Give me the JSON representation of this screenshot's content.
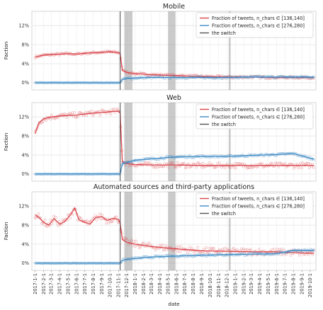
{
  "chart_data": {
    "type": "line",
    "xlabel": "date",
    "x_tick_labels": [
      "2017-1-1",
      "2017-2-1",
      "2017-3-1",
      "2017-4-1",
      "2017-5-1",
      "2017-6-1",
      "2017-7-1",
      "2017-8-1",
      "2017-9-1",
      "2017-10-1",
      "2017-11-1",
      "2017-12-1",
      "2018-1-1",
      "2018-2-1",
      "2018-3-1",
      "2018-4-1",
      "2018-5-1",
      "2018-6-1",
      "2018-7-1",
      "2018-8-1",
      "2018-9-1",
      "2018-10-1",
      "2018-11-1",
      "2018-12-1",
      "2019-1-1",
      "2019-2-1",
      "2019-3-1",
      "2019-4-1",
      "2019-5-1",
      "2019-6-1",
      "2019-7-1",
      "2019-8-1",
      "2019-9-1",
      "2019-10-1"
    ],
    "x_range": [
      "2016-12-20",
      "2019-10-22"
    ],
    "switch_date": "2017-11-07",
    "shaded_ranges": [
      [
        "2017-11-22",
        "2017-12-22"
      ],
      [
        "2018-05-01",
        "2018-05-28"
      ],
      [
        "2018-12-08",
        "2018-12-15"
      ]
    ],
    "legend": {
      "position": "top-right",
      "entries": [
        {
          "label": "Fraction of tweets, n_chars ∈ [136,140]",
          "color": "#d9454b"
        },
        {
          "label": "Fraction of tweets, n_chars ∈ [276,280]",
          "color": "#3f8cc6"
        },
        {
          "label": "the switch",
          "color": "#555555"
        }
      ]
    },
    "panels": [
      {
        "title": "Mobile",
        "ylabel": "Faction",
        "ylim": [
          -1.5,
          15
        ],
        "yticks": [
          "0%",
          "4%",
          "8%",
          "12%"
        ],
        "grid": true,
        "series": [
          {
            "name": "Fraction of tweets, n_chars ∈ [136,140]",
            "x": [
              "2017-01-01",
              "2017-02-01",
              "2017-03-01",
              "2017-04-01",
              "2017-05-01",
              "2017-06-01",
              "2017-07-01",
              "2017-08-01",
              "2017-09-01",
              "2017-10-01",
              "2017-11-01",
              "2017-11-07",
              "2017-11-15",
              "2017-12-01",
              "2018-01-01",
              "2018-03-01",
              "2018-06-01",
              "2018-09-01",
              "2018-12-01",
              "2019-03-01",
              "2019-06-01",
              "2019-10-15"
            ],
            "y": [
              5.4,
              5.8,
              5.9,
              6.0,
              6.1,
              6.0,
              6.2,
              6.3,
              6.4,
              6.5,
              6.3,
              6.1,
              2.6,
              2.2,
              1.9,
              1.7,
              1.5,
              1.3,
              1.2,
              1.2,
              1.1,
              1.1
            ]
          },
          {
            "name": "Fraction of tweets, n_chars ∈ [276,280]",
            "x": [
              "2017-01-01",
              "2017-11-07",
              "2017-11-15",
              "2017-12-01",
              "2018-01-01",
              "2018-03-01",
              "2018-06-01",
              "2018-09-01",
              "2018-12-01",
              "2019-03-01",
              "2019-06-01",
              "2019-10-15"
            ],
            "y": [
              0.0,
              0.0,
              0.7,
              0.9,
              1.0,
              1.1,
              1.1,
              1.1,
              1.1,
              1.2,
              1.2,
              1.2
            ]
          }
        ]
      },
      {
        "title": "Web",
        "ylabel": "Faction",
        "ylim": [
          -1.5,
          15
        ],
        "yticks": [
          "0%",
          "4%",
          "8%",
          "12%"
        ],
        "grid": true,
        "series": [
          {
            "name": "Fraction of tweets, n_chars ∈ [136,140]",
            "x": [
              "2017-01-01",
              "2017-01-15",
              "2017-02-01",
              "2017-03-01",
              "2017-04-01",
              "2017-05-01",
              "2017-06-01",
              "2017-07-01",
              "2017-08-01",
              "2017-09-01",
              "2017-10-01",
              "2017-11-01",
              "2017-11-07",
              "2017-11-15",
              "2017-12-01",
              "2018-01-01",
              "2018-03-01",
              "2018-06-01",
              "2018-09-01",
              "2018-12-01",
              "2019-03-01",
              "2019-06-01",
              "2019-10-15"
            ],
            "y": [
              8.5,
              10.8,
              11.6,
              12.0,
              12.2,
              12.3,
              12.4,
              12.6,
              12.8,
              12.9,
              13.1,
              13.2,
              12.8,
              2.6,
              2.2,
              2.0,
              1.9,
              1.9,
              1.8,
              1.8,
              1.8,
              1.8,
              1.8
            ]
          },
          {
            "name": "Fraction of tweets, n_chars ∈ [276,280]",
            "x": [
              "2017-01-01",
              "2017-11-07",
              "2017-11-15",
              "2017-12-01",
              "2018-01-01",
              "2018-03-01",
              "2018-06-01",
              "2018-09-01",
              "2018-12-01",
              "2019-03-01",
              "2019-06-01",
              "2019-08-01",
              "2019-10-15"
            ],
            "y": [
              0.0,
              0.0,
              2.2,
              2.4,
              2.9,
              3.2,
              3.6,
              3.7,
              3.7,
              3.9,
              4.1,
              4.3,
              3.1
            ]
          }
        ]
      },
      {
        "title": "Automated sources and third-party applications",
        "ylabel": "Faction",
        "ylim": [
          -1.5,
          15
        ],
        "yticks": [
          "0%",
          "4%",
          "8%",
          "12%"
        ],
        "grid": true,
        "series": [
          {
            "name": "Fraction of tweets, n_chars ∈ [136,140]",
            "x": [
              "2017-01-01",
              "2017-01-15",
              "2017-02-01",
              "2017-02-20",
              "2017-03-10",
              "2017-04-01",
              "2017-04-20",
              "2017-05-10",
              "2017-05-25",
              "2017-06-10",
              "2017-07-01",
              "2017-07-20",
              "2017-08-10",
              "2017-09-01",
              "2017-09-20",
              "2017-10-10",
              "2017-11-01",
              "2017-11-07",
              "2017-11-15",
              "2017-12-01",
              "2018-01-01",
              "2018-03-01",
              "2018-06-01",
              "2018-09-01",
              "2018-12-01",
              "2019-03-01",
              "2019-06-01",
              "2019-08-01",
              "2019-10-15"
            ],
            "y": [
              10.2,
              9.6,
              8.6,
              8.0,
              9.4,
              8.2,
              8.8,
              10.2,
              11.6,
              9.1,
              8.6,
              8.2,
              9.6,
              9.8,
              9.0,
              9.4,
              9.2,
              8.4,
              5.0,
              4.4,
              4.0,
              3.5,
              3.0,
              2.6,
              2.5,
              2.4,
              2.4,
              2.2,
              2.1
            ]
          },
          {
            "name": "Fraction of tweets, n_chars ∈ [276,280]",
            "x": [
              "2017-01-01",
              "2017-11-07",
              "2017-11-15",
              "2017-12-01",
              "2018-01-01",
              "2018-03-01",
              "2018-06-01",
              "2018-09-01",
              "2018-12-01",
              "2019-03-01",
              "2019-06-01",
              "2019-08-01",
              "2019-10-15"
            ],
            "y": [
              0.0,
              0.0,
              0.6,
              0.8,
              1.0,
              1.3,
              1.5,
              1.7,
              1.8,
              1.9,
              2.0,
              2.7,
              2.7
            ]
          }
        ]
      }
    ]
  }
}
